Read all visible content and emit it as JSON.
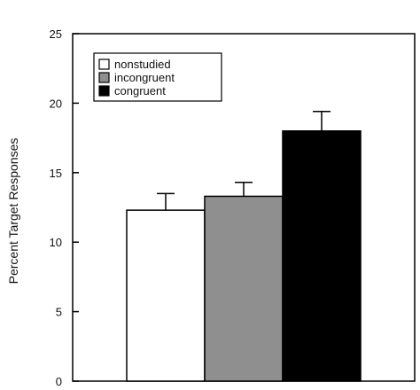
{
  "chart_data": {
    "type": "bar",
    "title": "",
    "xlabel": "",
    "ylabel": "Percent Target Responses",
    "ylim": [
      0,
      25
    ],
    "yticks": [
      0,
      5,
      10,
      15,
      20,
      25
    ],
    "grid": false,
    "legend_position": "top-left",
    "series": [
      {
        "name": "nonstudied",
        "value": 12.3,
        "error": 1.2,
        "color": "#ffffff"
      },
      {
        "name": "incongruent",
        "value": 13.3,
        "error": 1.0,
        "color": "#8f8f8f"
      },
      {
        "name": "congruent",
        "value": 18.0,
        "error": 1.4,
        "color": "#000000"
      }
    ]
  }
}
